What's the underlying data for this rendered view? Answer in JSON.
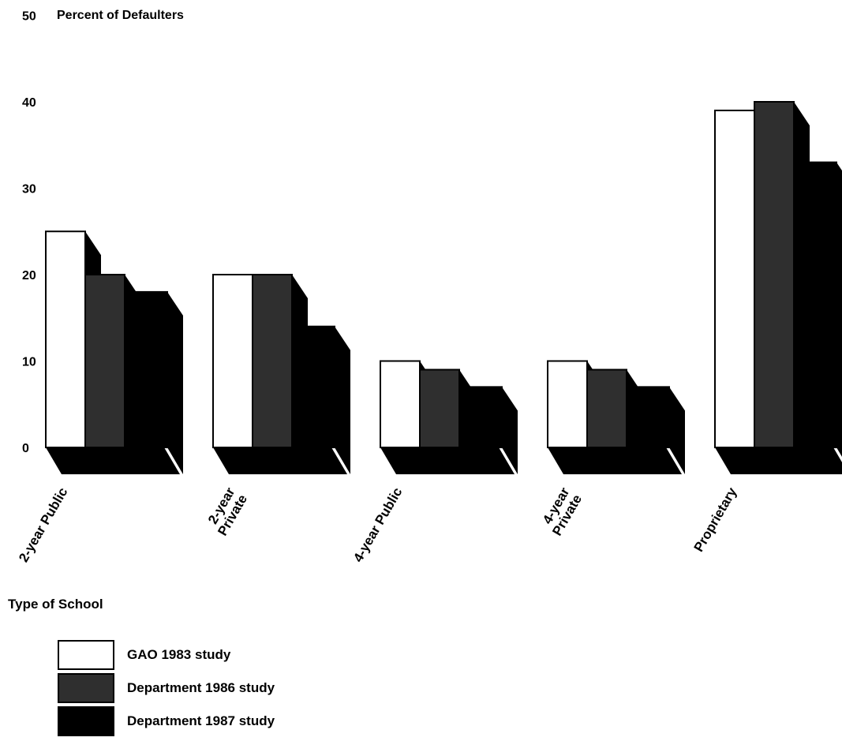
{
  "chart_data": {
    "type": "bar",
    "title": "",
    "ylabel": "Percent of Defaulters",
    "xlabel": "Type of School",
    "ylim": [
      0,
      50
    ],
    "yticks": [
      "0",
      "10",
      "20",
      "30",
      "40",
      "50"
    ],
    "categories": [
      [
        "2-year Public"
      ],
      [
        "2-year",
        "Private"
      ],
      [
        "4-year Public"
      ],
      [
        "4-year",
        "Private"
      ],
      [
        "Proprietary"
      ]
    ],
    "series": [
      {
        "name": "GAO 1983 study",
        "values": [
          25,
          20,
          10,
          10,
          39
        ],
        "color": "#ffffff"
      },
      {
        "name": "Department 1986 study",
        "values": [
          20,
          20,
          9,
          9,
          40
        ],
        "color": "#2f2f2f"
      },
      {
        "name": "Department 1987 study",
        "values": [
          18,
          14,
          7,
          7,
          33
        ],
        "color": "#000000"
      }
    ],
    "legend_position": "bottom-left",
    "grid": false
  },
  "legend": {
    "items": [
      {
        "label": "GAO 1983 study",
        "color": "#ffffff"
      },
      {
        "label": "Department 1986 study",
        "color": "#2f2f2f"
      },
      {
        "label": "Department 1987 study",
        "color": "#000000"
      }
    ]
  }
}
